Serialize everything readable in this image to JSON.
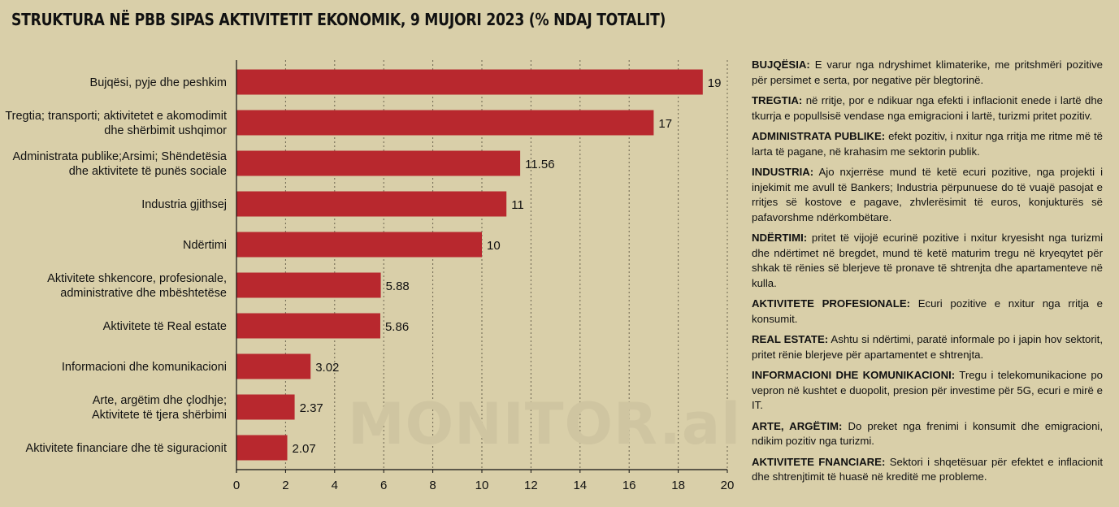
{
  "title": "STRUKTURA NË PBB SIPAS AKTIVITETIT EKONOMIK, 9 MUJORI 2023 (% NDAJ TOTALIT)",
  "watermark": "MONITOR.al",
  "colors": {
    "bar": "#b8282e",
    "background": "#d9cfa9",
    "axis": "#111111"
  },
  "chart_data": {
    "type": "bar",
    "orientation": "horizontal",
    "categories": [
      [
        "Bujqësi, pyje dhe peshkim"
      ],
      [
        "Tregtia; transporti; aktivitetet e akomodimit",
        "dhe shërbimit ushqimor"
      ],
      [
        "Administrata publike;Arsimi; Shëndetësia",
        "dhe aktivitete të punës sociale"
      ],
      [
        "Industria gjithsej"
      ],
      [
        "Ndërtimi"
      ],
      [
        "Aktivitete shkencore, profesionale,",
        "administrative dhe mbështetëse"
      ],
      [
        "Aktivitete të Real estate"
      ],
      [
        "Informacioni dhe komunikacioni"
      ],
      [
        "Arte, argëtim dhe çlodhje;",
        "Aktivitete të tjera shërbimi"
      ],
      [
        "Aktivitete financiare dhe të siguracionit"
      ]
    ],
    "values": [
      19,
      17,
      11.56,
      11,
      10,
      5.88,
      5.86,
      3.02,
      2.37,
      2.07
    ],
    "value_labels": [
      "19",
      "17",
      "11.56",
      "11",
      "10",
      "5.88",
      "5.86",
      "3.02",
      "2.37",
      "2.07"
    ],
    "xlim": [
      0,
      20
    ],
    "xticks": [
      0,
      2,
      4,
      6,
      8,
      10,
      12,
      14,
      16,
      18,
      20
    ],
    "grid": "vertical dashed"
  },
  "notes": [
    {
      "head": "BUJQËSIA:",
      "text": " E varur nga ndryshimet klimaterike, me pritshmëri pozitive për persimet e serta, por negative për blegtorinë."
    },
    {
      "head": "TREGTIA:",
      "text": " në rritje, por e ndikuar nga efekti i inflacionit enede i lartë dhe tkurrja e popullsisë vendase nga emigracioni i lartë, turizmi pritet pozitiv."
    },
    {
      "head": "ADMINISTRATA PUBLIKE:",
      "text": " efekt pozitiv, i nxitur nga rritja me ritme më të larta të pagane, në krahasim me sektorin publik."
    },
    {
      "head": "INDUSTRIA:",
      "text": " Ajo nxjerrëse mund të ketë ecuri pozitive, nga projekti i injekimit me avull të Bankers; Industria përpunuese do të vuajë pasojat e rritjes së kostove e pagave, zhvlerësimit të euros, konjukturës së pafavorshme ndërkombëtare."
    },
    {
      "head": "NDËRTIMI:",
      "text": " pritet të vijojë ecurinë pozitive i nxitur kryesisht nga turizmi dhe ndërtimet në bregdet, mund të ketë maturim tregu në kryeqytet për shkak të rënies së blerjeve të pronave të shtrenjta dhe apartamenteve në kulla."
    },
    {
      "head": "AKTIVITETE PROFESIONALE:",
      "text": " Ecuri pozitive e nxitur nga rritja e konsumit."
    },
    {
      "head": "REAL ESTATE:",
      "text": " Ashtu si ndërtimi, paratë informale po i japin hov sektorit, pritet rënie  blerjeve për apartamentet e shtrenjta."
    },
    {
      "head": "INFORMACIONI DHE KOMUNIKACIONI:",
      "text": " Tregu i  telekomunikacione po vepron në kushtet e duopolit, presion për investime për 5G,  ecuri e mirë e IT."
    },
    {
      "head": "ARTE, ARGËTIM:",
      "text": " Do preket nga frenimi i konsumit dhe emigracioni, ndikim pozitiv nga turizmi."
    },
    {
      "head": "AKTIVITETE FNANCIARE:",
      "text": " Sektori i shqetësuar për efektet e inflacionit dhe shtrenjtimit të huasë në kreditë me probleme."
    }
  ]
}
